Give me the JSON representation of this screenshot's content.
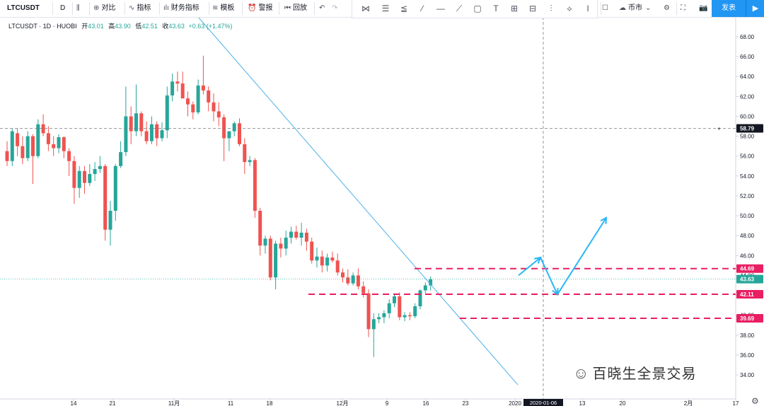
{
  "toolbar": {
    "symbol": "LTCUSDT",
    "interval": "D",
    "compare": "对比",
    "indicators": "指标",
    "financials": "财务指标",
    "templates": "模板",
    "alert": "警报",
    "replay": "回放",
    "currency": "币市",
    "publish": "发表"
  },
  "legend": {
    "title": "LTCUSDT · 1D · HUOBI",
    "open_label": "开",
    "open": "43.01",
    "high_label": "高",
    "high": "43.90",
    "low_label": "低",
    "low": "42.51",
    "close_label": "收",
    "close": "43.63",
    "change": "+0.63 (+1.47%)"
  },
  "watermark": "百晓生全景交易",
  "colors": {
    "up": "#26a69a",
    "down": "#ef5350",
    "trendline": "#4fb0e8",
    "hline": "#e91e63",
    "arrow": "#29b6f6",
    "last_price_tag": "#26a69a",
    "crosshair_tag": "#131722"
  },
  "chart_data": {
    "type": "candlestick",
    "y_range": [
      33,
      69
    ],
    "y_ticks": [
      "68.00",
      "66.00",
      "64.00",
      "62.00",
      "60.00",
      "58.00",
      "56.00",
      "54.00",
      "52.00",
      "50.00",
      "48.00",
      "46.00",
      "44.00",
      "42.00",
      "40.00",
      "38.00",
      "36.00",
      "34.00"
    ],
    "x_ticks": [
      "14",
      "21",
      "11月",
      "11",
      "18",
      "12月",
      "9",
      "16",
      "23",
      "2020",
      "13",
      "20",
      "2月",
      "17"
    ],
    "crosshair_date": "2020-01-06",
    "crosshair_price": "58.79",
    "last_price": "43.63",
    "horizontal_levels": [
      {
        "value": 44.69,
        "label": "44.69"
      },
      {
        "value": 42.11,
        "label": "42.11"
      },
      {
        "value": 39.69,
        "label": "39.69"
      }
    ],
    "trendline": {
      "from_price": 70,
      "to_price": 33
    },
    "projection": [
      44,
      45.8,
      42.1,
      49.8
    ],
    "candles": [
      [
        56.5,
        57.5,
        55.0,
        55.5
      ],
      [
        55.5,
        58.8,
        55.0,
        58.5
      ],
      [
        58.3,
        58.8,
        56.0,
        57.0
      ],
      [
        57.0,
        58.0,
        55.2,
        55.8
      ],
      [
        55.8,
        58.5,
        55.5,
        58.0
      ],
      [
        58.0,
        58.2,
        53.2,
        56.0
      ],
      [
        56.0,
        59.7,
        55.8,
        59.2
      ],
      [
        59.2,
        60.2,
        58.0,
        58.3
      ],
      [
        58.3,
        59.0,
        56.5,
        57.2
      ],
      [
        57.2,
        58.0,
        56.0,
        56.8
      ],
      [
        56.8,
        58.2,
        56.3,
        57.9
      ],
      [
        57.9,
        58.0,
        55.8,
        56.5
      ],
      [
        56.5,
        56.8,
        54.0,
        55.5
      ],
      [
        55.5,
        56.0,
        51.2,
        52.8
      ],
      [
        52.8,
        55.0,
        51.8,
        54.5
      ],
      [
        54.5,
        55.0,
        52.2,
        53.3
      ],
      [
        53.3,
        55.2,
        53.0,
        54.2
      ],
      [
        54.2,
        55.4,
        53.5,
        54.7
      ],
      [
        54.7,
        56.0,
        54.3,
        55.0
      ],
      [
        55.0,
        55.2,
        47.5,
        48.6
      ],
      [
        48.6,
        51.5,
        47.0,
        50.5
      ],
      [
        50.5,
        55.2,
        49.5,
        55.0
      ],
      [
        55.0,
        57.5,
        54.8,
        56.4
      ],
      [
        56.4,
        63.0,
        56.0,
        60.0
      ],
      [
        60.0,
        61.0,
        57.2,
        58.5
      ],
      [
        58.5,
        63.2,
        58.0,
        60.3
      ],
      [
        60.3,
        60.5,
        58.0,
        58.5
      ],
      [
        58.5,
        59.5,
        57.2,
        57.5
      ],
      [
        57.5,
        60.0,
        57.2,
        59.2
      ],
      [
        59.2,
        59.5,
        57.0,
        57.8
      ],
      [
        57.8,
        59.4,
        57.5,
        58.6
      ],
      [
        58.6,
        63.0,
        57.8,
        62.1
      ],
      [
        62.1,
        64.3,
        61.5,
        63.5
      ],
      [
        63.5,
        64.5,
        62.5,
        63.3
      ],
      [
        63.3,
        64.5,
        62.0,
        61.8
      ],
      [
        61.8,
        62.5,
        60.0,
        61.2
      ],
      [
        61.2,
        61.5,
        59.7,
        60.4
      ],
      [
        60.4,
        63.7,
        60.2,
        63.1
      ],
      [
        63.1,
        66.1,
        62.2,
        62.6
      ],
      [
        62.6,
        63.0,
        60.5,
        61.4
      ],
      [
        61.4,
        62.3,
        59.5,
        60.5
      ],
      [
        60.5,
        61.4,
        59.0,
        59.9
      ],
      [
        59.9,
        60.2,
        55.5,
        57.8
      ],
      [
        57.8,
        58.5,
        56.5,
        58.5
      ],
      [
        58.5,
        59.5,
        58.0,
        59.3
      ],
      [
        59.3,
        59.8,
        57.0,
        57.2
      ],
      [
        57.2,
        57.8,
        54.2,
        55.4
      ],
      [
        55.4,
        56.0,
        55.0,
        55.6
      ],
      [
        55.6,
        55.8,
        49.8,
        50.5
      ],
      [
        50.5,
        50.8,
        46.0,
        47.0
      ],
      [
        47.0,
        48.0,
        46.2,
        47.7
      ],
      [
        47.7,
        48.0,
        43.5,
        43.8
      ],
      [
        43.8,
        47.5,
        42.6,
        47.2
      ],
      [
        47.2,
        47.8,
        45.8,
        46.7
      ],
      [
        46.7,
        48.5,
        46.0,
        47.8
      ],
      [
        47.8,
        48.9,
        47.2,
        48.4
      ],
      [
        48.4,
        49.0,
        47.6,
        47.8
      ],
      [
        47.8,
        49.3,
        47.0,
        48.3
      ],
      [
        48.3,
        48.7,
        46.5,
        47.4
      ],
      [
        47.4,
        47.8,
        45.2,
        45.5
      ],
      [
        45.5,
        46.8,
        44.8,
        45.9
      ],
      [
        45.9,
        46.5,
        44.3,
        45.0
      ],
      [
        45.0,
        46.2,
        44.4,
        45.8
      ],
      [
        45.8,
        46.4,
        45.3,
        45.5
      ],
      [
        45.5,
        46.2,
        44.0,
        44.3
      ],
      [
        44.3,
        44.7,
        43.3,
        43.8
      ],
      [
        43.8,
        44.6,
        43.0,
        43.2
      ],
      [
        43.2,
        44.3,
        43.0,
        44.0
      ],
      [
        44.0,
        44.7,
        42.6,
        42.9
      ],
      [
        42.9,
        43.4,
        41.8,
        42.2
      ],
      [
        42.2,
        42.6,
        37.8,
        38.6
      ],
      [
        38.6,
        40.2,
        35.8,
        39.6
      ],
      [
        39.6,
        40.2,
        39.2,
        39.8
      ],
      [
        39.8,
        40.5,
        39.2,
        40.2
      ],
      [
        40.2,
        41.6,
        39.7,
        41.2
      ],
      [
        41.2,
        42.2,
        40.8,
        41.9
      ],
      [
        41.9,
        42.3,
        39.5,
        39.8
      ],
      [
        39.8,
        40.3,
        39.4,
        40.0
      ],
      [
        40.0,
        40.3,
        39.5,
        39.9
      ],
      [
        39.9,
        41.2,
        39.7,
        40.9
      ],
      [
        40.9,
        42.6,
        40.6,
        42.5
      ],
      [
        42.5,
        43.3,
        42.2,
        43.0
      ],
      [
        43.0,
        43.9,
        42.5,
        43.6
      ]
    ]
  }
}
